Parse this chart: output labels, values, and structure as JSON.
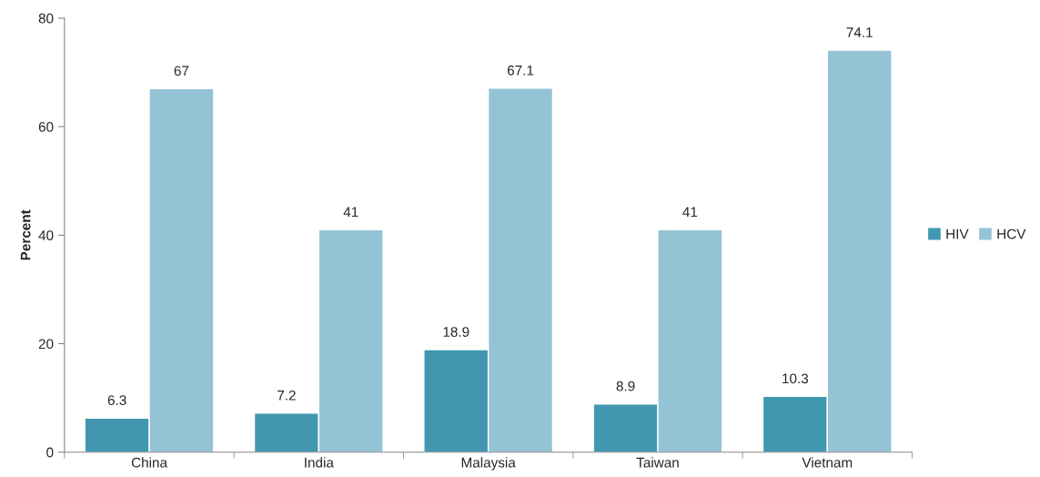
{
  "chart_data": {
    "type": "bar",
    "ylabel": "Percent",
    "categories": [
      "China",
      "India",
      "Malaysia",
      "Taiwan",
      "Vietnam"
    ],
    "series": [
      {
        "name": "HIV",
        "color": "#4197b0",
        "values": [
          6.3,
          7.2,
          18.9,
          8.9,
          10.3
        ]
      },
      {
        "name": "HCV",
        "color": "#93c3d5",
        "values": [
          67,
          41,
          67.1,
          41,
          74.1
        ]
      }
    ],
    "ylim": [
      0,
      80
    ],
    "yticks": [
      0,
      20,
      40,
      60,
      80
    ],
    "grid": false,
    "legend": "right",
    "data_labels": true
  }
}
